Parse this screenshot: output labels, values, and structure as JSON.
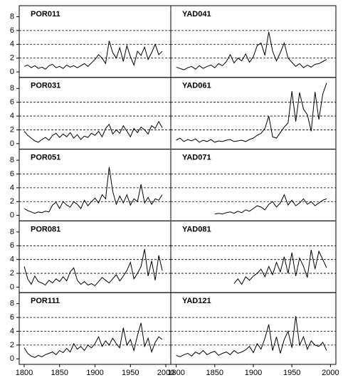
{
  "chart_data": [
    {
      "type": "line",
      "title": "POR011",
      "color": "#000000",
      "xlim": [
        1793,
        2007
      ],
      "ylim": [
        -0.8,
        9.6
      ],
      "yticks": [
        0,
        2,
        4,
        6,
        8
      ],
      "grid": [
        2,
        4,
        6
      ],
      "x": [
        1800,
        1805,
        1810,
        1815,
        1820,
        1825,
        1830,
        1835,
        1840,
        1845,
        1850,
        1855,
        1860,
        1865,
        1870,
        1875,
        1880,
        1885,
        1890,
        1895,
        1900,
        1905,
        1910,
        1915,
        1920,
        1925,
        1930,
        1935,
        1940,
        1945,
        1950,
        1955,
        1960,
        1965,
        1970,
        1975,
        1980,
        1985,
        1990,
        1995
      ],
      "values": [
        0.8,
        1.0,
        0.6,
        0.9,
        0.5,
        0.7,
        0.4,
        0.9,
        1.1,
        0.6,
        0.8,
        0.5,
        1.0,
        0.7,
        0.9,
        0.6,
        0.9,
        1.2,
        0.8,
        1.3,
        1.8,
        2.5,
        2.0,
        1.2,
        4.5,
        2.8,
        2.0,
        3.5,
        1.5,
        3.8,
        2.2,
        1.0,
        3.0,
        2.4,
        3.6,
        1.8,
        2.8,
        4.0,
        2.5,
        3.0
      ]
    },
    {
      "type": "line",
      "title": "POR031",
      "color": "#000000",
      "xlim": [
        1793,
        2007
      ],
      "ylim": [
        -0.8,
        9.6
      ],
      "yticks": [
        0,
        2,
        4,
        6,
        8
      ],
      "grid": [
        2,
        4,
        6
      ],
      "x": [
        1800,
        1805,
        1810,
        1815,
        1820,
        1825,
        1830,
        1835,
        1840,
        1845,
        1850,
        1855,
        1860,
        1865,
        1870,
        1875,
        1880,
        1885,
        1890,
        1895,
        1900,
        1905,
        1910,
        1915,
        1920,
        1925,
        1930,
        1935,
        1940,
        1945,
        1950,
        1955,
        1960,
        1965,
        1970,
        1975,
        1980,
        1985,
        1990,
        1995
      ],
      "values": [
        1.8,
        1.2,
        0.8,
        0.4,
        0.2,
        0.6,
        0.9,
        0.5,
        1.2,
        1.5,
        0.9,
        1.4,
        1.0,
        1.6,
        0.8,
        1.3,
        0.6,
        1.1,
        0.9,
        1.5,
        1.2,
        1.8,
        1.0,
        2.2,
        2.8,
        1.4,
        2.0,
        1.5,
        2.6,
        1.8,
        1.0,
        2.2,
        1.6,
        2.4,
        2.0,
        1.4,
        2.6,
        2.2,
        3.2,
        2.3
      ]
    },
    {
      "type": "line",
      "title": "POR051",
      "color": "#000000",
      "xlim": [
        1793,
        2007
      ],
      "ylim": [
        -0.8,
        9.6
      ],
      "yticks": [
        0,
        2,
        4,
        6,
        8
      ],
      "grid": [
        2,
        4,
        6
      ],
      "x": [
        1800,
        1805,
        1810,
        1815,
        1820,
        1825,
        1830,
        1835,
        1840,
        1845,
        1850,
        1855,
        1860,
        1865,
        1870,
        1875,
        1880,
        1885,
        1890,
        1895,
        1900,
        1905,
        1910,
        1915,
        1920,
        1925,
        1930,
        1935,
        1940,
        1945,
        1950,
        1955,
        1960,
        1965,
        1970,
        1975,
        1980,
        1985,
        1990,
        1995
      ],
      "values": [
        1.0,
        0.7,
        0.5,
        0.3,
        0.5,
        0.4,
        0.6,
        0.5,
        1.5,
        1.9,
        1.0,
        2.0,
        1.5,
        1.2,
        2.0,
        1.6,
        1.0,
        2.2,
        1.4,
        2.0,
        2.5,
        1.8,
        3.0,
        2.4,
        7.0,
        3.5,
        1.6,
        2.8,
        1.8,
        3.0,
        1.5,
        2.4,
        2.0,
        4.5,
        1.8,
        2.6,
        1.6,
        2.4,
        2.2,
        3.0
      ]
    },
    {
      "type": "line",
      "title": "POR081",
      "color": "#000000",
      "xlim": [
        1793,
        2007
      ],
      "ylim": [
        -0.8,
        9.6
      ],
      "yticks": [
        0,
        2,
        4,
        6,
        8
      ],
      "grid": [
        2,
        4,
        6
      ],
      "x": [
        1800,
        1805,
        1810,
        1815,
        1820,
        1825,
        1830,
        1835,
        1840,
        1845,
        1850,
        1855,
        1860,
        1865,
        1870,
        1875,
        1880,
        1885,
        1890,
        1895,
        1900,
        1905,
        1910,
        1915,
        1920,
        1925,
        1930,
        1935,
        1940,
        1945,
        1950,
        1955,
        1960,
        1965,
        1970,
        1975,
        1980,
        1985,
        1990,
        1995
      ],
      "values": [
        3.0,
        1.2,
        0.4,
        1.6,
        0.8,
        0.6,
        0.3,
        1.0,
        0.6,
        1.2,
        0.8,
        1.5,
        0.9,
        2.2,
        2.8,
        1.0,
        0.4,
        0.8,
        0.3,
        0.5,
        0.2,
        0.8,
        1.4,
        1.0,
        0.6,
        1.2,
        1.8,
        0.9,
        1.6,
        2.4,
        3.6,
        1.2,
        2.0,
        3.0,
        5.5,
        1.6,
        3.8,
        1.0,
        4.6,
        2.4
      ]
    },
    {
      "type": "line",
      "title": "POR111",
      "color": "#000000",
      "xlim": [
        1793,
        2007
      ],
      "ylim": [
        -0.8,
        9.6
      ],
      "yticks": [
        0,
        2,
        4,
        6,
        8
      ],
      "grid": [
        2,
        4,
        6
      ],
      "xticks": [
        1800,
        1850,
        1900,
        1950,
        2000
      ],
      "x": [
        1800,
        1805,
        1810,
        1815,
        1820,
        1825,
        1830,
        1835,
        1840,
        1845,
        1850,
        1855,
        1860,
        1865,
        1870,
        1875,
        1880,
        1885,
        1890,
        1895,
        1900,
        1905,
        1910,
        1915,
        1920,
        1925,
        1930,
        1935,
        1940,
        1945,
        1950,
        1955,
        1960,
        1965,
        1970,
        1975,
        1980,
        1985,
        1990,
        1995
      ],
      "values": [
        1.6,
        0.8,
        0.4,
        0.2,
        0.5,
        0.3,
        0.6,
        0.8,
        1.0,
        0.6,
        1.2,
        0.9,
        1.5,
        1.0,
        2.2,
        1.4,
        1.8,
        1.2,
        2.0,
        1.6,
        2.2,
        3.2,
        1.8,
        2.6,
        2.0,
        3.0,
        2.2,
        1.6,
        4.5,
        2.0,
        2.8,
        1.2,
        3.4,
        5.2,
        1.8,
        3.0,
        1.0,
        2.4,
        3.2,
        2.8
      ]
    },
    {
      "type": "line",
      "title": "YAD041",
      "color": "#000000",
      "xlim": [
        1793,
        2007
      ],
      "ylim": [
        -0.8,
        9.6
      ],
      "grid": [
        2,
        4,
        6
      ],
      "x": [
        1800,
        1805,
        1810,
        1815,
        1820,
        1825,
        1830,
        1835,
        1840,
        1845,
        1850,
        1855,
        1860,
        1865,
        1870,
        1875,
        1880,
        1885,
        1890,
        1895,
        1900,
        1905,
        1910,
        1915,
        1920,
        1925,
        1930,
        1935,
        1940,
        1945,
        1950,
        1955,
        1960,
        1965,
        1970,
        1975,
        1980,
        1985,
        1990,
        1995
      ],
      "values": [
        0.7,
        0.5,
        0.3,
        0.6,
        0.8,
        0.4,
        0.9,
        0.5,
        0.8,
        1.0,
        0.6,
        1.2,
        0.9,
        1.5,
        2.5,
        1.3,
        2.0,
        1.6,
        2.6,
        1.4,
        2.2,
        3.8,
        4.2,
        2.4,
        5.8,
        3.0,
        1.6,
        2.8,
        4.2,
        2.0,
        1.4,
        0.8,
        1.2,
        0.6,
        1.0,
        0.7,
        1.1,
        1.2,
        1.5,
        1.8
      ]
    },
    {
      "type": "line",
      "title": "YAD061",
      "color": "#000000",
      "xlim": [
        1793,
        2007
      ],
      "ylim": [
        -0.8,
        9.6
      ],
      "grid": [
        2,
        4,
        6
      ],
      "x": [
        1800,
        1805,
        1810,
        1815,
        1820,
        1825,
        1830,
        1835,
        1840,
        1845,
        1850,
        1855,
        1860,
        1865,
        1870,
        1875,
        1880,
        1885,
        1890,
        1895,
        1900,
        1905,
        1910,
        1915,
        1920,
        1925,
        1930,
        1935,
        1940,
        1945,
        1950,
        1955,
        1960,
        1965,
        1970,
        1975,
        1980,
        1985,
        1990,
        1995
      ],
      "values": [
        0.5,
        0.8,
        0.3,
        0.6,
        0.4,
        0.7,
        0.2,
        0.5,
        0.3,
        0.6,
        0.2,
        0.4,
        0.3,
        0.5,
        0.6,
        0.3,
        0.4,
        0.5,
        0.3,
        0.6,
        0.8,
        1.2,
        1.5,
        2.2,
        4.0,
        1.0,
        0.8,
        1.6,
        2.4,
        3.0,
        7.6,
        3.2,
        7.4,
        5.0,
        4.2,
        1.8,
        7.5,
        3.5,
        7.2,
        8.8
      ]
    },
    {
      "type": "line",
      "title": "YAD071",
      "color": "#000000",
      "xlim": [
        1793,
        2007
      ],
      "ylim": [
        -0.8,
        9.6
      ],
      "grid": [
        2,
        4,
        6
      ],
      "x": [
        1850,
        1855,
        1860,
        1865,
        1870,
        1875,
        1880,
        1885,
        1890,
        1895,
        1900,
        1905,
        1910,
        1915,
        1920,
        1925,
        1930,
        1935,
        1940,
        1945,
        1950,
        1955,
        1960,
        1965,
        1970,
        1975,
        1980,
        1985,
        1990,
        1995
      ],
      "values": [
        0.2,
        0.3,
        0.2,
        0.4,
        0.5,
        0.3,
        0.6,
        0.4,
        0.8,
        0.6,
        1.0,
        1.4,
        1.2,
        0.8,
        1.6,
        2.0,
        1.2,
        1.8,
        3.0,
        1.5,
        2.2,
        1.4,
        1.8,
        2.4,
        1.6,
        2.0,
        1.4,
        1.8,
        2.2,
        2.4
      ]
    },
    {
      "type": "line",
      "title": "YAD081",
      "color": "#000000",
      "xlim": [
        1793,
        2007
      ],
      "ylim": [
        -0.8,
        9.6
      ],
      "grid": [
        2,
        4,
        6
      ],
      "x": [
        1875,
        1880,
        1885,
        1890,
        1895,
        1900,
        1905,
        1910,
        1915,
        1920,
        1925,
        1930,
        1935,
        1940,
        1945,
        1950,
        1955,
        1960,
        1965,
        1970,
        1975,
        1980,
        1985,
        1990,
        1995
      ],
      "values": [
        0.5,
        1.2,
        0.4,
        1.5,
        1.0,
        1.6,
        2.0,
        2.6,
        1.5,
        3.0,
        1.8,
        3.6,
        2.2,
        4.4,
        2.0,
        5.0,
        1.6,
        4.2,
        3.0,
        1.4,
        5.4,
        2.6,
        5.2,
        4.0,
        2.8
      ]
    },
    {
      "type": "line",
      "title": "YAD121",
      "color": "#000000",
      "xlim": [
        1793,
        2007
      ],
      "ylim": [
        -0.8,
        9.6
      ],
      "grid": [
        2,
        4,
        6
      ],
      "xticks": [
        1800,
        1850,
        1900,
        1950,
        2000
      ],
      "x": [
        1800,
        1805,
        1810,
        1815,
        1820,
        1825,
        1830,
        1835,
        1840,
        1845,
        1850,
        1855,
        1860,
        1865,
        1870,
        1875,
        1880,
        1885,
        1890,
        1895,
        1900,
        1905,
        1910,
        1915,
        1920,
        1925,
        1930,
        1935,
        1940,
        1945,
        1950,
        1955,
        1960,
        1965,
        1970,
        1975,
        1980,
        1985,
        1990,
        1995
      ],
      "values": [
        0.5,
        0.3,
        0.6,
        0.8,
        0.4,
        1.0,
        0.7,
        1.2,
        0.6,
        0.9,
        1.1,
        0.5,
        0.8,
        1.0,
        0.6,
        1.2,
        0.8,
        1.0,
        1.3,
        1.8,
        0.9,
        2.2,
        1.4,
        3.0,
        5.0,
        1.2,
        3.2,
        0.8,
        2.8,
        4.0,
        1.6,
        6.2,
        2.0,
        3.2,
        1.4,
        2.6,
        2.0,
        1.8,
        2.4,
        1.2
      ]
    }
  ]
}
